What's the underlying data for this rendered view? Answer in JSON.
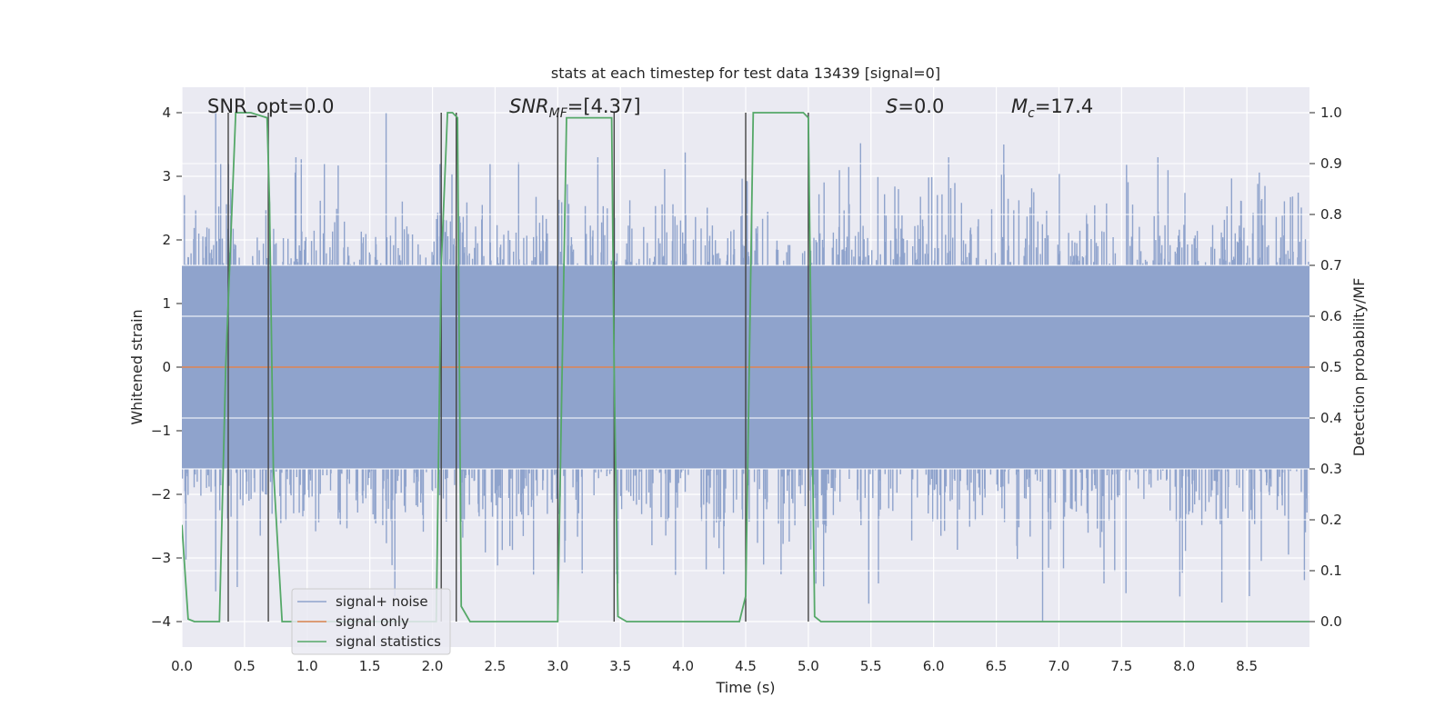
{
  "chart_data": {
    "type": "line",
    "title": "stats at each timestep for test data 13439 [signal=0]",
    "xlabel": "Time (s)",
    "ylabel": "Whitened strain",
    "y2label": "Detection probability/MF",
    "xlim": [
      0,
      9.0
    ],
    "ylim": [
      -4.4,
      4.4
    ],
    "y2lim": [
      -0.05,
      1.05
    ],
    "xticks": [
      "0.0",
      "0.5",
      "1.0",
      "1.5",
      "2.0",
      "2.5",
      "3.0",
      "3.5",
      "4.0",
      "4.5",
      "5.0",
      "5.5",
      "6.0",
      "6.5",
      "7.0",
      "7.5",
      "8.0",
      "8.5"
    ],
    "yticks": [
      "4",
      "3",
      "2",
      "1",
      "0",
      "−1",
      "−2",
      "−3",
      "−4"
    ],
    "y2ticks": [
      "1.0",
      "0.9",
      "0.8",
      "0.7",
      "0.6",
      "0.5",
      "0.4",
      "0.3",
      "0.2",
      "0.1",
      "0.0"
    ],
    "grid": true,
    "legend_position": "lower-left",
    "annotations": {
      "snr_opt": "SNR_opt=0.0",
      "snr_mf": "=[4.37]",
      "s": "=0.0",
      "mc": "=17.4"
    },
    "series": [
      {
        "name": "signal+ noise",
        "color": "#8fa3cc",
        "description_of_values": "whitened noise strain, roughly Gaussian with sigma 0.75, peaks up to about ±4",
        "envelope_abs": 1.6,
        "peaks": [
          {
            "x": 0.27,
            "y": 4.0
          },
          {
            "x": 0.31,
            "y": 3.2
          },
          {
            "x": 0.39,
            "y": 2.8
          },
          {
            "x": 0.7,
            "y": 2.6
          },
          {
            "x": 0.91,
            "y": 3.3
          },
          {
            "x": 1.63,
            "y": 4.0
          },
          {
            "x": 2.06,
            "y": 3.2
          },
          {
            "x": 2.46,
            "y": 3.2
          },
          {
            "x": 3.32,
            "y": 3.3
          },
          {
            "x": 6.12,
            "y": 3.3
          },
          {
            "x": 6.56,
            "y": 3.5
          },
          {
            "x": 7.79,
            "y": 3.3
          },
          {
            "x": 6.87,
            "y": -4.0
          },
          {
            "x": 8.3,
            "y": -3.7
          },
          {
            "x": 8.52,
            "y": -3.6
          },
          {
            "x": 7.36,
            "y": -3.4
          },
          {
            "x": 5.56,
            "y": -3.4
          },
          {
            "x": 3.48,
            "y": -3.4
          },
          {
            "x": 1.7,
            "y": -3.6
          }
        ]
      },
      {
        "name": "signal only",
        "color": "#dd8452",
        "x": [
          0,
          9.0
        ],
        "y": [
          0,
          0
        ]
      },
      {
        "name": "signal statistics",
        "color": "#55a868",
        "axis": "right",
        "x": [
          0.0,
          0.05,
          0.1,
          0.3,
          0.35,
          0.43,
          0.55,
          0.68,
          0.7,
          0.73,
          0.8,
          2.03,
          2.07,
          2.12,
          2.16,
          2.2,
          2.23,
          2.3,
          3.0,
          3.07,
          3.43,
          3.45,
          3.48,
          3.55,
          4.45,
          4.5,
          4.56,
          4.96,
          5.0,
          5.05,
          5.1,
          9.0
        ],
        "y": [
          0.19,
          0.005,
          0.0,
          0.0,
          0.5,
          1.0,
          1.0,
          0.99,
          0.82,
          0.3,
          0.0,
          0.0,
          0.7,
          1.0,
          1.0,
          0.99,
          0.03,
          0.0,
          0.0,
          0.99,
          0.99,
          0.5,
          0.01,
          0.0,
          0.0,
          0.05,
          1.0,
          1.0,
          0.99,
          0.01,
          0.0,
          0.0
        ]
      }
    ],
    "vertical_markers_x": [
      0.37,
      0.69,
      2.07,
      2.19,
      3.0,
      3.45,
      4.5,
      5.0
    ]
  }
}
